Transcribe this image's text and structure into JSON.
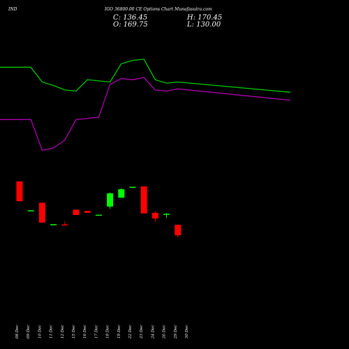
{
  "header": {
    "symbol": "IND",
    "subtitle": "IGO 36800.00  CE Options  Chart Munafasutra.com",
    "close_label": "C: 136.45",
    "high_label": "H: 170.45",
    "open_label": "O: 169.75",
    "low_label": "L: 130.00"
  },
  "chart_data": {
    "type": "candlestick",
    "title": "",
    "xlabel": "",
    "ylabel": "",
    "background": "#000000",
    "colors": {
      "up": "#00ff00",
      "down": "#ff0000",
      "line_upper": "#00cc00",
      "line_lower": "#b000b0"
    },
    "categories": [
      "08 Dec",
      "09 Dec",
      "10 Dec",
      "11 Dec",
      "12 Dec",
      "15 Dec",
      "16 Dec",
      "17 Dec",
      "18 Dec",
      "19 Dec",
      "22 Dec",
      "23 Dec",
      "24 Dec",
      "26 Dec",
      "29 Dec",
      "30 Dec"
    ],
    "price_ylim": [
      70,
      310
    ],
    "candles": [
      {
        "date": "08 Dec",
        "open": 308,
        "high": 308,
        "low": 245,
        "close": 245
      },
      {
        "date": "09 Dec",
        "open": 215,
        "high": 215,
        "low": 215,
        "close": 216
      },
      {
        "date": "10 Dec",
        "open": 240,
        "high": 241,
        "low": 177,
        "close": 177
      },
      {
        "date": "11 Dec",
        "open": 171,
        "high": 171,
        "low": 171,
        "close": 172
      },
      {
        "date": "12 Dec",
        "open": 171,
        "high": 180,
        "low": 170,
        "close": 169
      },
      {
        "date": "15 Dec",
        "open": 218,
        "high": 218,
        "low": 201,
        "close": 201
      },
      {
        "date": "16 Dec",
        "open": 214,
        "high": 214,
        "low": 208,
        "close": 208
      },
      {
        "date": "17 Dec",
        "open": 201,
        "high": 201,
        "low": 201,
        "close": 202
      },
      {
        "date": "18 Dec",
        "open": 228,
        "high": 273,
        "low": 221,
        "close": 270
      },
      {
        "date": "19 Dec",
        "open": 256,
        "high": 286,
        "low": 256,
        "close": 283
      },
      {
        "date": "22 Dec",
        "open": 290,
        "high": 291,
        "low": 290,
        "close": 291
      },
      {
        "date": "23 Dec",
        "open": 292,
        "high": 292,
        "low": 206,
        "close": 206
      },
      {
        "date": "24 Dec",
        "open": 208,
        "high": 213,
        "low": 180,
        "close": 190
      },
      {
        "date": "26 Dec",
        "open": 202,
        "high": 207,
        "low": 192,
        "close": 205
      },
      {
        "date": "29 Dec",
        "open": 169.75,
        "high": 170.45,
        "low": 130,
        "close": 136.45
      }
    ],
    "lines_ylim": [
      0,
      100
    ],
    "series": [
      {
        "values": [
          90,
          90,
          77,
          74,
          70,
          69,
          79,
          78,
          77,
          93,
          96,
          97,
          79,
          76,
          77,
          68
        ]
      },
      {
        "values": [
          44,
          44,
          17,
          19,
          26,
          44,
          45,
          46,
          75,
          80,
          79,
          81,
          70,
          69,
          71,
          61
        ]
      }
    ]
  }
}
